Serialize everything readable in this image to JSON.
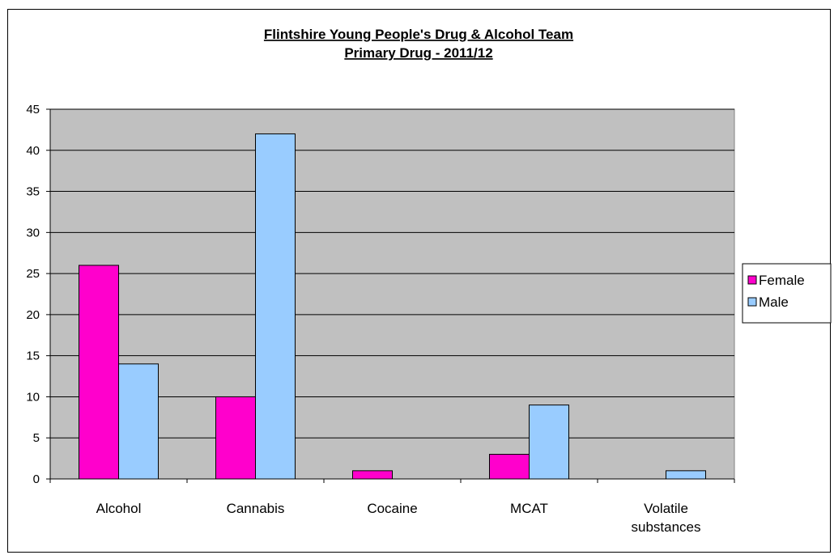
{
  "chart_data": {
    "type": "bar",
    "title": [
      "Flintshire Young People's Drug & Alcohol Team",
      "Primary Drug - 2011/12"
    ],
    "categories": [
      [
        "Alcohol"
      ],
      [
        "Cannabis"
      ],
      [
        "Cocaine"
      ],
      [
        "MCAT"
      ],
      [
        "Volatile",
        "substances"
      ]
    ],
    "series": [
      {
        "name": "Female",
        "values": [
          26,
          10,
          1,
          3,
          0
        ],
        "color": "#ff00cc"
      },
      {
        "name": "Male",
        "values": [
          14,
          42,
          0,
          9,
          1
        ],
        "color": "#99ccff"
      }
    ],
    "ylim": [
      0,
      45
    ],
    "yticks": [
      0,
      5,
      10,
      15,
      20,
      25,
      30,
      35,
      40,
      45
    ],
    "grid": true,
    "legend": "right",
    "plot_background": "#c0c0c0"
  }
}
